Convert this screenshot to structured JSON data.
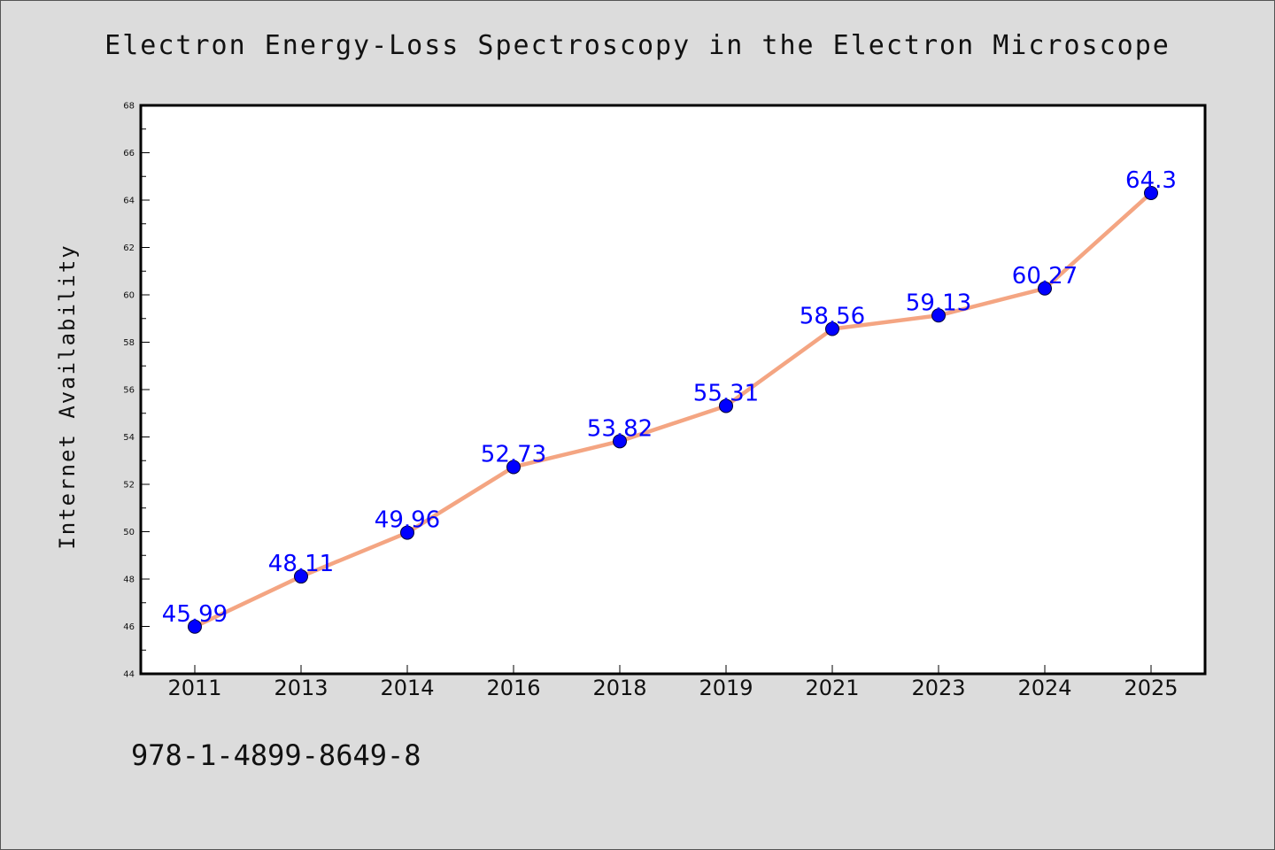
{
  "chart_data": {
    "type": "line",
    "title": "Electron Energy-Loss Spectroscopy in the Electron Microscope",
    "xlabel": "",
    "ylabel": "Internet Availability",
    "categories": [
      "2011",
      "2013",
      "2014",
      "2016",
      "2018",
      "2019",
      "2021",
      "2023",
      "2024",
      "2025"
    ],
    "series": [
      {
        "values": [
          45.99,
          48.11,
          49.96,
          52.73,
          53.82,
          55.31,
          58.56,
          59.13,
          60.27,
          64.3
        ],
        "labels": [
          "45.99",
          "48.11",
          "49.96",
          "52.73",
          "53.82",
          "55.31",
          "58.56",
          "59.13",
          "60.27",
          "64.3"
        ],
        "line_color": "#f4a582",
        "marker_color": "#0000ff"
      }
    ],
    "ylim": [
      44,
      68
    ],
    "yticks": [
      "44",
      "46",
      "48",
      "50",
      "52",
      "54",
      "56",
      "58",
      "60",
      "62",
      "64",
      "66",
      "68"
    ],
    "grid": false,
    "legend": "none"
  },
  "footer": {
    "isbn": "978-1-4899-8649-8"
  },
  "colors": {
    "background": "#dcdcdc",
    "plot_background": "#ffffff",
    "line": "#f4a582",
    "marker": "#0000ff",
    "data_label": "#0000ff"
  }
}
